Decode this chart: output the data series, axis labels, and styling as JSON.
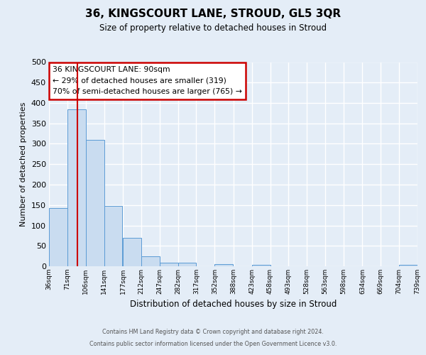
{
  "title": "36, KINGSCOURT LANE, STROUD, GL5 3QR",
  "subtitle": "Size of property relative to detached houses in Stroud",
  "xlabel": "Distribution of detached houses by size in Stroud",
  "ylabel": "Number of detached properties",
  "bin_edges": [
    36,
    71,
    106,
    141,
    177,
    212,
    247,
    282,
    317,
    352,
    388,
    423,
    458,
    493,
    528,
    563,
    598,
    634,
    669,
    704,
    739
  ],
  "bar_heights": [
    143,
    385,
    310,
    148,
    70,
    25,
    9,
    8,
    0,
    5,
    0,
    3,
    0,
    0,
    0,
    0,
    0,
    0,
    0,
    3
  ],
  "bar_color": "#c9dcf0",
  "bar_edge_color": "#5b9bd5",
  "red_line_x": 90,
  "ylim": [
    0,
    500
  ],
  "yticks": [
    0,
    50,
    100,
    150,
    200,
    250,
    300,
    350,
    400,
    450,
    500
  ],
  "annotation_title": "36 KINGSCOURT LANE: 90sqm",
  "annotation_line1": "← 29% of detached houses are smaller (319)",
  "annotation_line2": "70% of semi-detached houses are larger (765) →",
  "annotation_box_facecolor": "#ffffff",
  "annotation_box_edgecolor": "#cc0000",
  "footer_line1": "Contains HM Land Registry data © Crown copyright and database right 2024.",
  "footer_line2": "Contains public sector information licensed under the Open Government Licence v3.0.",
  "background_color": "#e4edf7",
  "grid_color": "#ffffff",
  "tick_labels": [
    "36sqm",
    "71sqm",
    "106sqm",
    "141sqm",
    "177sqm",
    "212sqm",
    "247sqm",
    "282sqm",
    "317sqm",
    "352sqm",
    "388sqm",
    "423sqm",
    "458sqm",
    "493sqm",
    "528sqm",
    "563sqm",
    "598sqm",
    "634sqm",
    "669sqm",
    "704sqm",
    "739sqm"
  ]
}
